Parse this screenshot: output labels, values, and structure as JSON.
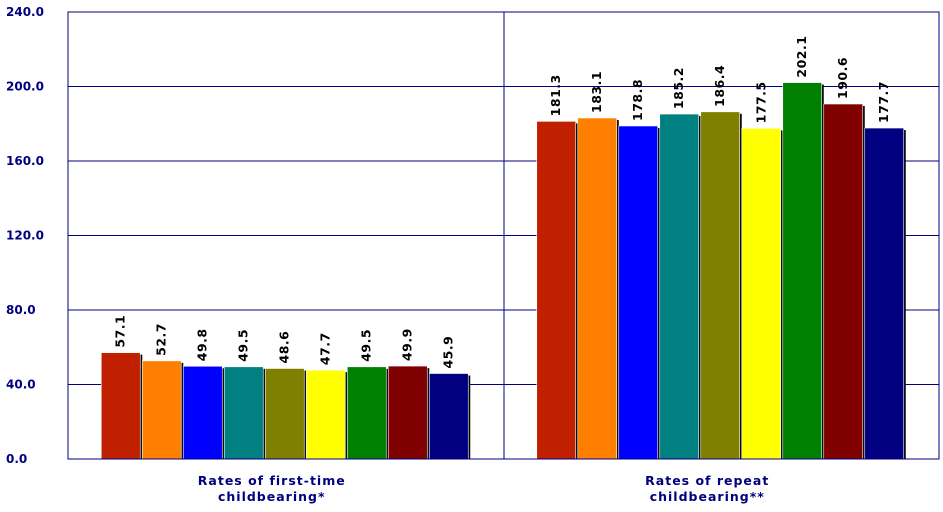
{
  "chart_data": {
    "type": "bar",
    "categories": [
      [
        "Rates of first-time",
        "childbearing*"
      ],
      [
        "Rates of repeat",
        "childbearing**"
      ]
    ],
    "series": [
      {
        "color": "#C02000",
        "values": [
          57.1,
          181.3
        ]
      },
      {
        "color": "#FF8000",
        "values": [
          52.7,
          183.1
        ]
      },
      {
        "color": "#0000FF",
        "values": [
          49.8,
          178.8
        ]
      },
      {
        "color": "#008080",
        "values": [
          49.5,
          185.2
        ]
      },
      {
        "color": "#808000",
        "values": [
          48.6,
          186.4
        ]
      },
      {
        "color": "#FFFF00",
        "values": [
          47.7,
          177.5
        ]
      },
      {
        "color": "#008000",
        "values": [
          49.5,
          202.1
        ]
      },
      {
        "color": "#800000",
        "values": [
          49.9,
          190.6
        ]
      },
      {
        "color": "#000080",
        "values": [
          45.9,
          177.7
        ]
      }
    ],
    "value_labels": [
      [
        "57.1",
        "52.7",
        "49.8",
        "49.5",
        "48.6",
        "47.7",
        "49.5",
        "49.9",
        "45.9"
      ],
      [
        "181.3",
        "183.1",
        "178.8",
        "185.2",
        "186.4",
        "177.5",
        "202.1",
        "190.6",
        "177.7"
      ]
    ],
    "yticks": [
      "0.0",
      "40.0",
      "80.0",
      "120.0",
      "160.0",
      "200.0",
      "240.0"
    ],
    "ytick_values": [
      0,
      40,
      80,
      120,
      160,
      200,
      240
    ],
    "ylim": [
      0,
      240
    ],
    "grid": "horizontal",
    "axis_color": "#000080",
    "legend": "none"
  }
}
